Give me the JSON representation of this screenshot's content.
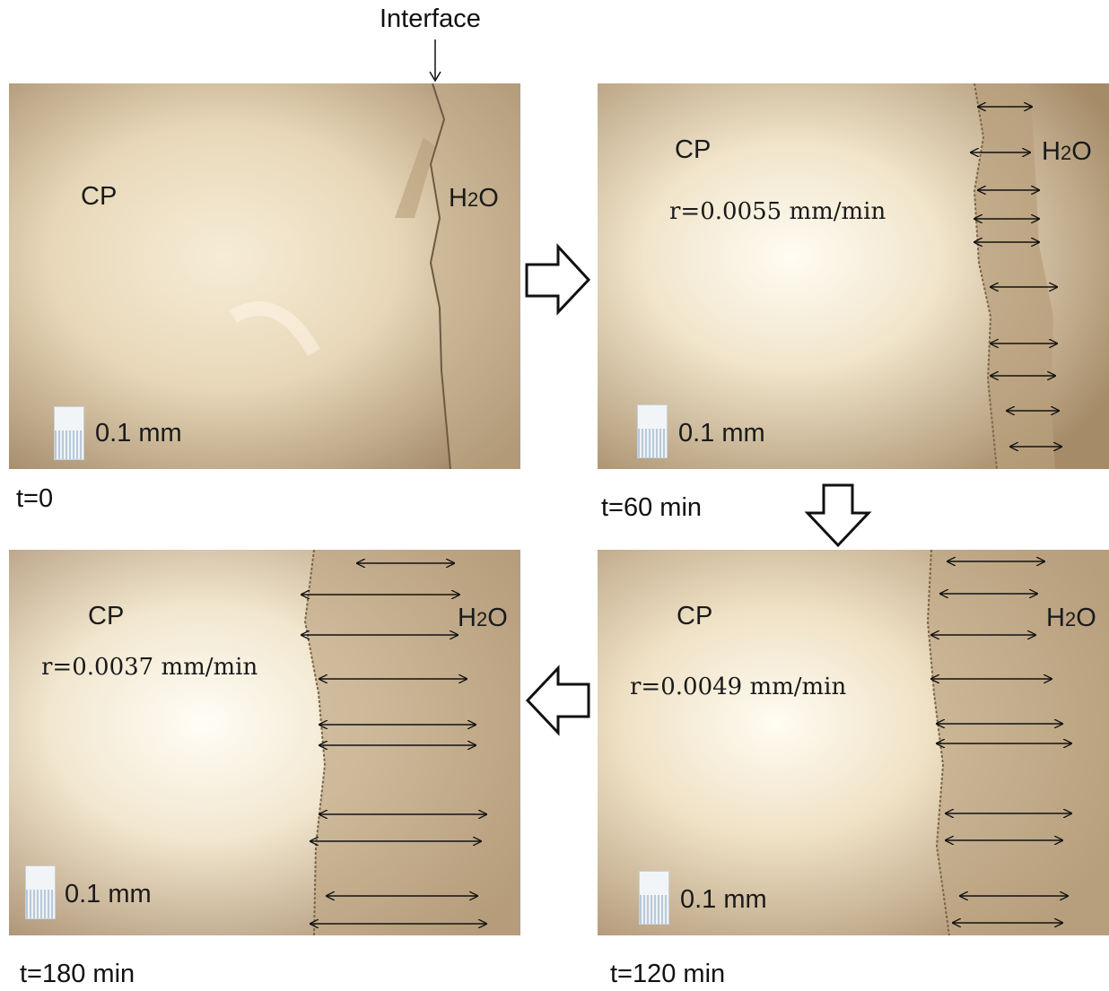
{
  "interface_label": "Interface",
  "panels": [
    {
      "id": "t0",
      "time": "t=0",
      "cp": "CP",
      "water": "H2O",
      "rate": "",
      "scale": "0.1 mm"
    },
    {
      "id": "t60",
      "time": "t=60 min",
      "cp": "CP",
      "water": "H2O",
      "rate": "r=0.0055 mm/min",
      "scale": "0.1 mm"
    },
    {
      "id": "t120",
      "time": "t=120 min",
      "cp": "CP",
      "water": "H2O",
      "rate": "r=0.0049 mm/min",
      "scale": "0.1 mm"
    },
    {
      "id": "t180",
      "time": "t=180 min",
      "cp": "CP",
      "water": "H2O",
      "rate": "r=0.0037 mm/min",
      "scale": "0.1 mm"
    }
  ],
  "colors": {
    "photo_bright": "#fbf6ea",
    "photo_mid": "#dccdb0",
    "photo_dark": "#a98f6c",
    "arrow": "#111111"
  }
}
